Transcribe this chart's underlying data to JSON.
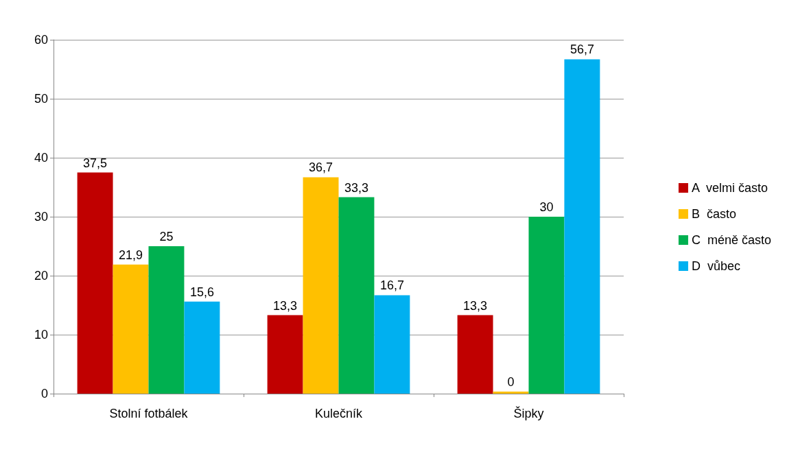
{
  "chart_data": {
    "type": "bar",
    "categories": [
      "Stolní fotbálek",
      "Kulečník",
      "Šipky"
    ],
    "series": [
      {
        "name": "A  velmi často",
        "color": "#c00000",
        "values": [
          37.5,
          13.3,
          13.3
        ],
        "value_labels": [
          "37,5",
          "13,3",
          "13,3"
        ]
      },
      {
        "name": "B  často",
        "color": "#ffc000",
        "values": [
          21.9,
          36.7,
          0
        ],
        "value_labels": [
          "21,9",
          "36,7",
          "0"
        ]
      },
      {
        "name": "C  méně často",
        "color": "#00b050",
        "values": [
          25,
          33.3,
          30
        ],
        "value_labels": [
          "25",
          "33,3",
          "30"
        ]
      },
      {
        "name": "D  vůbec",
        "color": "#00b0f0",
        "values": [
          15.6,
          16.7,
          56.7
        ],
        "value_labels": [
          "15,6",
          "16,7",
          "56,7"
        ]
      }
    ],
    "ylim": [
      0,
      60
    ],
    "yticks": [
      0,
      10,
      20,
      30,
      40,
      50,
      60
    ],
    "grid": "y",
    "legend": "right"
  }
}
